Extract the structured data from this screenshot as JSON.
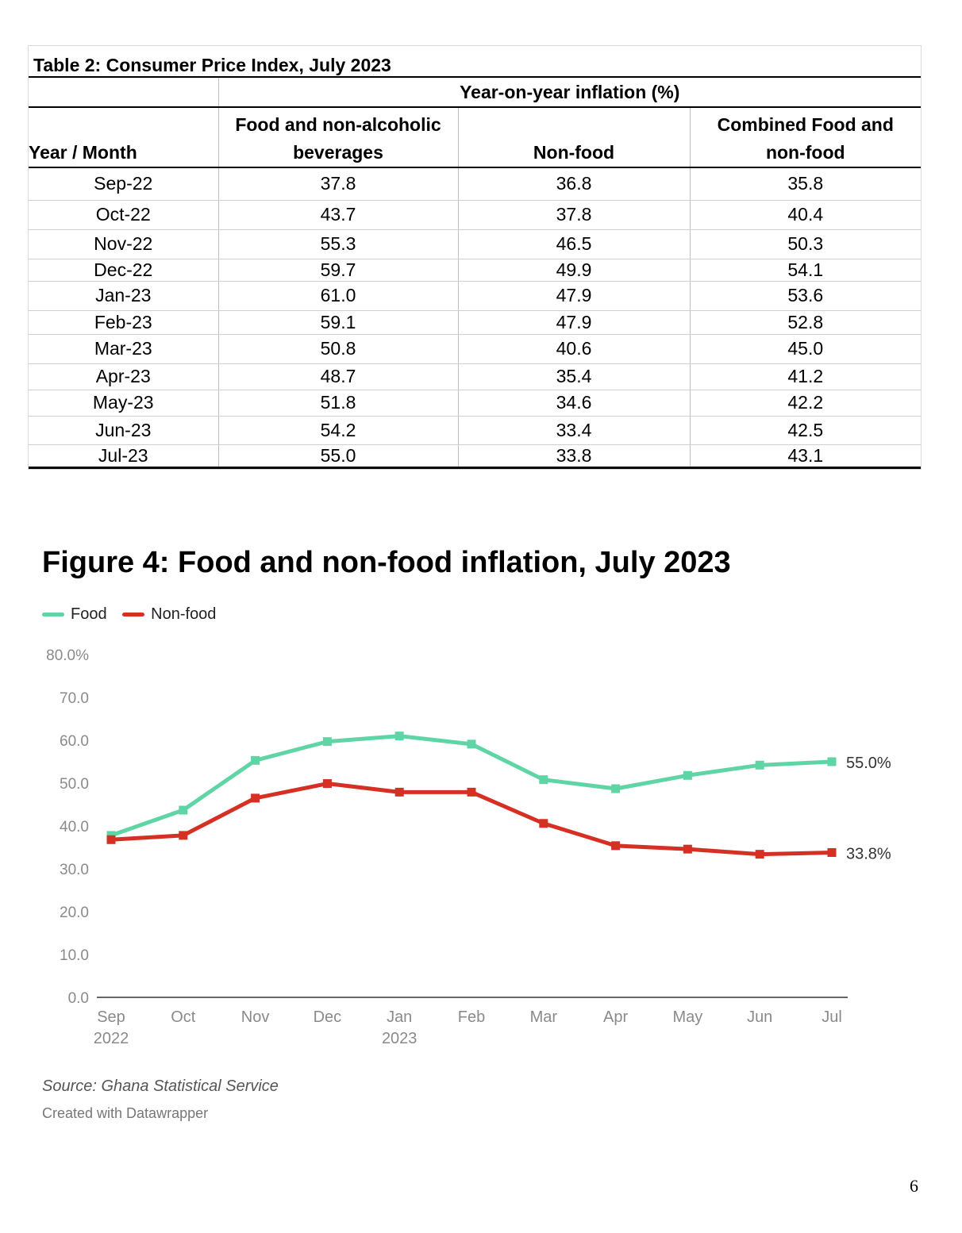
{
  "table": {
    "title": "Table 2: Consumer Price Index, July 2023",
    "super_header": "Year-on-year inflation (%)",
    "col_year": "Year / Month",
    "col_food": "Food and non-alcoholic beverages",
    "col_nonfood": "Non-food",
    "col_combined": "Combined Food and non-food",
    "rows": [
      [
        "Sep-22",
        "37.8",
        "36.8",
        "35.8"
      ],
      [
        "Oct-22",
        "43.7",
        "37.8",
        "40.4"
      ],
      [
        "Nov-22",
        "55.3",
        "46.5",
        "50.3"
      ],
      [
        "Dec-22",
        "59.7",
        "49.9",
        "54.1"
      ],
      [
        "Jan-23",
        "61.0",
        "47.9",
        "53.6"
      ],
      [
        "Feb-23",
        "59.1",
        "47.9",
        "52.8"
      ],
      [
        "Mar-23",
        "50.8",
        "40.6",
        "45.0"
      ],
      [
        "Apr-23",
        "48.7",
        "35.4",
        "41.2"
      ],
      [
        "May-23",
        "51.8",
        "34.6",
        "42.2"
      ],
      [
        "Jun-23",
        "54.2",
        "33.4",
        "42.5"
      ],
      [
        "Jul-23",
        "55.0",
        "33.8",
        "43.1"
      ]
    ]
  },
  "figure": {
    "title": "Figure 4: Food and non-food inflation, July 2023",
    "source": "Source: Ghana Statistical Service",
    "credit": "Created with Datawrapper"
  },
  "chart_data": {
    "type": "line",
    "title": "Figure 4: Food and non-food inflation, July 2023",
    "categories": [
      "Sep",
      "Oct",
      "Nov",
      "Dec",
      "Jan",
      "Feb",
      "Mar",
      "Apr",
      "May",
      "Jun",
      "Jul"
    ],
    "category_sublabels": [
      "2022",
      "",
      "",
      "",
      "2023",
      "",
      "",
      "",
      "",
      "",
      ""
    ],
    "series": [
      {
        "name": "Food",
        "color": "#5fd5a5",
        "values": [
          37.8,
          43.7,
          55.3,
          59.7,
          61.0,
          59.1,
          50.8,
          48.7,
          51.8,
          54.2,
          55.0
        ],
        "end_label": "55.0%"
      },
      {
        "name": "Non-food",
        "color": "#d62f23",
        "values": [
          36.8,
          37.8,
          46.5,
          49.9,
          47.9,
          47.9,
          40.6,
          35.4,
          34.6,
          33.4,
          33.8
        ],
        "end_label": "33.8%"
      }
    ],
    "yticks": [
      "0.0",
      "10.0",
      "20.0",
      "30.0",
      "40.0",
      "50.0",
      "60.0",
      "70.0",
      "80.0%"
    ],
    "ylim": [
      0,
      80
    ],
    "legend_position": "top-left",
    "grid": false
  },
  "page_number": "6"
}
